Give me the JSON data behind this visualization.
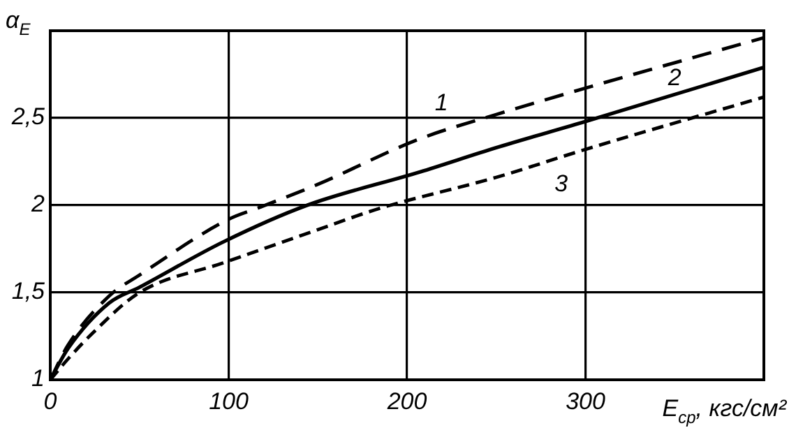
{
  "chart_data": {
    "type": "line",
    "xlabel": "E$_{ср}$, кгс/см²",
    "ylabel": "α$_{E}$",
    "xlim": [
      0,
      400
    ],
    "ylim": [
      1,
      3
    ],
    "xticks": [
      0,
      100,
      200,
      300,
      {
        "value": 400,
        "label": null
      }
    ],
    "yticks": [
      1,
      {
        "value": 1.5,
        "label": "1,5"
      },
      2,
      {
        "value": 2.5,
        "label": "2,5"
      },
      {
        "value": 3,
        "label": null
      }
    ],
    "grid": true,
    "legend": false,
    "marker": "none",
    "series": [
      {
        "name": "1",
        "color": "#000000",
        "line_style": "dashed",
        "x": [
          0,
          10,
          33,
          50,
          100,
          118,
          150,
          207,
          250,
          303,
          400
        ],
        "values": [
          1,
          1.2,
          1.48,
          1.6,
          1.92,
          1.99,
          2.12,
          2.38,
          2.52,
          2.68,
          2.96
        ]
      },
      {
        "name": "2",
        "color": "#000000",
        "line_style": "solid",
        "x": [
          0,
          10,
          33,
          50,
          97,
          144,
          207,
          250,
          300,
          400
        ],
        "values": [
          1,
          1.18,
          1.44,
          1.53,
          1.79,
          2.0,
          2.19,
          2.33,
          2.48,
          2.79
        ]
      },
      {
        "name": "3",
        "color": "#000000",
        "line_style": "dashed",
        "x": [
          0,
          10,
          24,
          50,
          97,
          150,
          184,
          250,
          300,
          400
        ],
        "values": [
          1,
          1.12,
          1.27,
          1.5,
          1.67,
          1.86,
          1.98,
          2.16,
          2.32,
          2.62
        ]
      }
    ]
  }
}
